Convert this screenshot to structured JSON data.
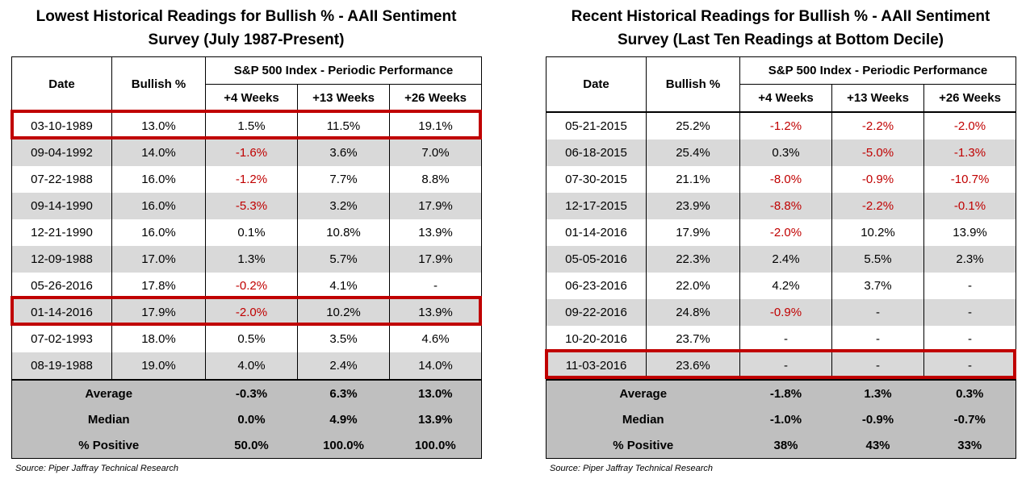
{
  "left": {
    "title": "Lowest Historical Readings for Bullish % - AAII Sentiment\nSurvey (July 1987-Present)",
    "headers": {
      "date": "Date",
      "bullish": "Bullish %",
      "perf_group": "S&P 500 Index - Periodic Performance",
      "w4": "+4 Weeks",
      "w13": "+13 Weeks",
      "w26": "+26 Weeks"
    },
    "rows": [
      {
        "date": "03-10-1989",
        "bullish": "13.0%",
        "w4": "1.5%",
        "w13": "11.5%",
        "w26": "19.1%",
        "highlight": true
      },
      {
        "date": "09-04-1992",
        "bullish": "14.0%",
        "w4": "-1.6%",
        "w13": "3.6%",
        "w26": "7.0%"
      },
      {
        "date": "07-22-1988",
        "bullish": "16.0%",
        "w4": "-1.2%",
        "w13": "7.7%",
        "w26": "8.8%"
      },
      {
        "date": "09-14-1990",
        "bullish": "16.0%",
        "w4": "-5.3%",
        "w13": "3.2%",
        "w26": "17.9%"
      },
      {
        "date": "12-21-1990",
        "bullish": "16.0%",
        "w4": "0.1%",
        "w13": "10.8%",
        "w26": "13.9%"
      },
      {
        "date": "12-09-1988",
        "bullish": "17.0%",
        "w4": "1.3%",
        "w13": "5.7%",
        "w26": "17.9%"
      },
      {
        "date": "05-26-2016",
        "bullish": "17.8%",
        "w4": "-0.2%",
        "w13": "4.1%",
        "w26": "-"
      },
      {
        "date": "01-14-2016",
        "bullish": "17.9%",
        "w4": "-2.0%",
        "w13": "10.2%",
        "w26": "13.9%",
        "highlight": true
      },
      {
        "date": "07-02-1993",
        "bullish": "18.0%",
        "w4": "0.5%",
        "w13": "3.5%",
        "w26": "4.6%"
      },
      {
        "date": "08-19-1988",
        "bullish": "19.0%",
        "w4": "4.0%",
        "w13": "2.4%",
        "w26": "14.0%"
      }
    ],
    "summary": [
      {
        "label": "Average",
        "w4": "-0.3%",
        "w13": "6.3%",
        "w26": "13.0%"
      },
      {
        "label": "Median",
        "w4": "0.0%",
        "w13": "4.9%",
        "w26": "13.9%"
      },
      {
        "label": "% Positive",
        "w4": "50.0%",
        "w13": "100.0%",
        "w26": "100.0%"
      }
    ],
    "source": "Source: Piper Jaffray Technical Research"
  },
  "right": {
    "title": "Recent Historical Readings for Bullish % - AAII Sentiment\nSurvey (Last Ten Readings at Bottom Decile)",
    "headers": {
      "date": "Date",
      "bullish": "Bullish %",
      "perf_group": "S&P 500 Index - Periodic Performance",
      "w4": "+4 Weeks",
      "w13": "+13 Weeks",
      "w26": "+26 Weeks"
    },
    "rows": [
      {
        "date": "05-21-2015",
        "bullish": "25.2%",
        "w4": "-1.2%",
        "w13": "-2.2%",
        "w26": "-2.0%"
      },
      {
        "date": "06-18-2015",
        "bullish": "25.4%",
        "w4": "0.3%",
        "w13": "-5.0%",
        "w26": "-1.3%"
      },
      {
        "date": "07-30-2015",
        "bullish": "21.1%",
        "w4": "-8.0%",
        "w13": "-0.9%",
        "w26": "-10.7%"
      },
      {
        "date": "12-17-2015",
        "bullish": "23.9%",
        "w4": "-8.8%",
        "w13": "-2.2%",
        "w26": "-0.1%"
      },
      {
        "date": "01-14-2016",
        "bullish": "17.9%",
        "w4": "-2.0%",
        "w13": "10.2%",
        "w26": "13.9%"
      },
      {
        "date": "05-05-2016",
        "bullish": "22.3%",
        "w4": "2.4%",
        "w13": "5.5%",
        "w26": "2.3%"
      },
      {
        "date": "06-23-2016",
        "bullish": "22.0%",
        "w4": "4.2%",
        "w13": "3.7%",
        "w26": "-"
      },
      {
        "date": "09-22-2016",
        "bullish": "24.8%",
        "w4": "-0.9%",
        "w13": "-",
        "w26": "-"
      },
      {
        "date": "10-20-2016",
        "bullish": "23.7%",
        "w4": "-",
        "w13": "-",
        "w26": "-"
      },
      {
        "date": "11-03-2016",
        "bullish": "23.6%",
        "w4": "-",
        "w13": "-",
        "w26": "-",
        "highlight": true
      }
    ],
    "summary": [
      {
        "label": "Average",
        "w4": "-1.8%",
        "w13": "1.3%",
        "w26": "0.3%"
      },
      {
        "label": "Median",
        "w4": "-1.0%",
        "w13": "-0.9%",
        "w26": "-0.7%"
      },
      {
        "label": "% Positive",
        "w4": "38%",
        "w13": "43%",
        "w26": "33%"
      }
    ],
    "source": "Source: Piper Jaffray Technical Research"
  },
  "colors": {
    "negative": "#c00000",
    "highlight_border": "#c00000",
    "row_shade": "#d9d9d9",
    "summary_shade": "#bfbfbf"
  }
}
